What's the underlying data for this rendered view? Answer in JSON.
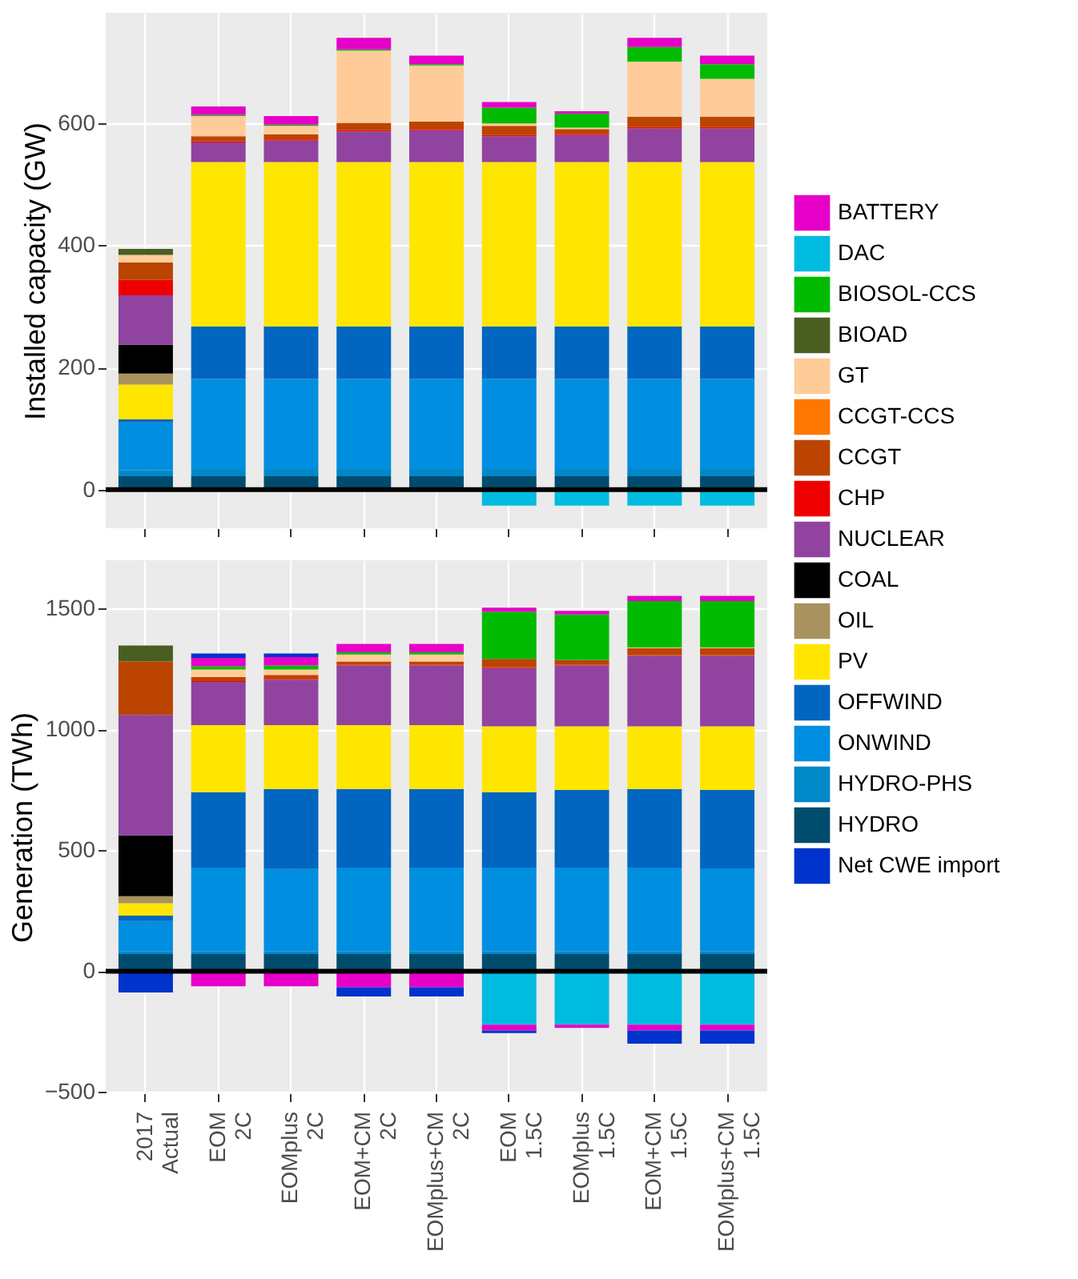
{
  "chart_data": [
    {
      "type": "bar",
      "stacked": true,
      "ylabel": "Installed capacity (GW)",
      "categories": [
        "2017\nActual",
        "EOM\n2C",
        "EOMplus\n2C",
        "EOM+CM\n2C",
        "EOMplus+CM\n2C",
        "EOM\n1.5C",
        "EOMplus\n1.5C",
        "EOM+CM\n1.5C",
        "EOMplus+CM\n1.5C"
      ],
      "ylim": [
        -63,
        780
      ],
      "yticks": [
        0,
        200,
        400,
        600
      ],
      "grid": true,
      "tick_labels": "y",
      "legend": "right",
      "ref_lines": [
        {
          "axis": "y",
          "value": 0,
          "color": "#000000"
        }
      ],
      "series": [
        {
          "name": "HYDRO",
          "color": "#004c6e",
          "values": [
            22,
            22,
            22,
            22,
            22,
            22,
            22,
            22,
            22
          ]
        },
        {
          "name": "HYDRO-PHS",
          "color": "#0088c8",
          "values": [
            10,
            12,
            12,
            12,
            12,
            12,
            12,
            12,
            12
          ]
        },
        {
          "name": "ONWIND",
          "color": "#008ee0",
          "values": [
            78,
            147,
            147,
            147,
            147,
            147,
            147,
            147,
            147
          ]
        },
        {
          "name": "OFFWIND",
          "color": "#0066c0",
          "values": [
            5,
            86,
            86,
            86,
            86,
            86,
            86,
            86,
            86
          ]
        },
        {
          "name": "PV",
          "color": "#ffe600",
          "values": [
            57,
            269,
            269,
            269,
            269,
            269,
            269,
            269,
            269
          ]
        },
        {
          "name": "OIL",
          "color": "#a8925e",
          "values": [
            18,
            null,
            null,
            null,
            null,
            null,
            null,
            null,
            null
          ]
        },
        {
          "name": "COAL",
          "color": "#000000",
          "values": [
            47,
            null,
            null,
            null,
            null,
            null,
            null,
            null,
            null
          ]
        },
        {
          "name": "NUCLEAR",
          "color": "#9044a0",
          "values": [
            81,
            32,
            35,
            50,
            52,
            42,
            44,
            55,
            55
          ]
        },
        {
          "name": "CHP",
          "color": "#ee0000",
          "values": [
            25,
            2,
            2,
            2,
            2,
            2,
            2,
            2,
            2
          ]
        },
        {
          "name": "CCGT",
          "color": "#bb4400",
          "values": [
            29,
            8,
            8,
            12,
            12,
            15,
            8,
            17,
            17
          ]
        },
        {
          "name": "CCGT-CCS",
          "color": "#ff7700",
          "values": [
            null,
            null,
            null,
            null,
            null,
            null,
            null,
            null,
            null
          ]
        },
        {
          "name": "GT",
          "color": "#ffcc99",
          "values": [
            12,
            33,
            14,
            118,
            92,
            4,
            2,
            90,
            62
          ]
        },
        {
          "name": "BIOAD",
          "color": "#4b5e22",
          "values": [
            10,
            null,
            null,
            null,
            null,
            null,
            null,
            null,
            null
          ]
        },
        {
          "name": "BIOSOL-CCS",
          "color": "#00bb00",
          "values": [
            null,
            2,
            2,
            2,
            2,
            26,
            23,
            24,
            24
          ]
        },
        {
          "name": "DAC",
          "color": "#00bbe0",
          "values": [
            null,
            null,
            null,
            null,
            null,
            -26,
            -26,
            -26,
            -26
          ]
        },
        {
          "name": "BATTERY",
          "color": "#e600c8",
          "values": [
            null,
            14,
            14,
            19,
            14,
            9,
            4,
            15,
            14
          ]
        }
      ]
    },
    {
      "type": "bar",
      "stacked": true,
      "ylabel": "Generation (TWh)",
      "categories": [
        "2017\nActual",
        "EOM\n2C",
        "EOMplus\n2C",
        "EOM+CM\n2C",
        "EOMplus+CM\n2C",
        "EOM\n1.5C",
        "EOMplus\n1.5C",
        "EOM+CM\n1.5C",
        "EOMplus+CM\n1.5C"
      ],
      "ylim": [
        -505,
        1700
      ],
      "yticks": [
        -500,
        0,
        500,
        1000,
        1500
      ],
      "grid": true,
      "ref_lines": [
        {
          "axis": "y",
          "value": 0,
          "color": "#000000"
        }
      ],
      "series": [
        {
          "name": "HYDRO",
          "color": "#004c6e",
          "values": [
            71,
            71,
            71,
            71,
            71,
            71,
            71,
            71,
            71
          ]
        },
        {
          "name": "HYDRO-PHS",
          "color": "#0088c8",
          "values": [
            11,
            11,
            11,
            11,
            11,
            11,
            11,
            11,
            11
          ]
        },
        {
          "name": "ONWIND",
          "color": "#008ee0",
          "values": [
            126,
            347,
            341,
            347,
            347,
            347,
            347,
            347,
            343
          ]
        },
        {
          "name": "OFFWIND",
          "color": "#0066c0",
          "values": [
            22,
            312,
            331,
            325,
            325,
            312,
            321,
            325,
            325
          ]
        },
        {
          "name": "PV",
          "color": "#ffe600",
          "values": [
            51,
            277,
            264,
            264,
            264,
            272,
            263,
            259,
            263
          ]
        },
        {
          "name": "OIL",
          "color": "#a8925e",
          "values": [
            29,
            null,
            null,
            null,
            null,
            null,
            null,
            null,
            null
          ]
        },
        {
          "name": "COAL",
          "color": "#000000",
          "values": [
            252,
            null,
            null,
            null,
            null,
            null,
            null,
            null,
            null
          ]
        },
        {
          "name": "NUCLEAR",
          "color": "#9044a0",
          "values": [
            498,
            179,
            188,
            247,
            247,
            241,
            252,
            292,
            292
          ]
        },
        {
          "name": "CHP",
          "color": "#ee0000",
          "values": [
            null,
            3,
            3,
            3,
            3,
            3,
            3,
            3,
            3
          ]
        },
        {
          "name": "CCGT",
          "color": "#bb4400",
          "values": [
            221,
            17,
            17,
            13,
            13,
            35,
            20,
            28,
            28
          ]
        },
        {
          "name": "GT",
          "color": "#ffcc99",
          "values": [
            null,
            31,
            22,
            29,
            29,
            null,
            null,
            3,
            3
          ]
        },
        {
          "name": "BIOAD",
          "color": "#4b5e22",
          "values": [
            66,
            null,
            null,
            null,
            null,
            null,
            null,
            null,
            null
          ]
        },
        {
          "name": "BIOSOL-CCS",
          "color": "#00bb00",
          "values": [
            null,
            13,
            17,
            9,
            9,
            195,
            188,
            192,
            192
          ]
        },
        {
          "name": "DAC",
          "color": "#00bbe0",
          "values": [
            null,
            null,
            null,
            null,
            null,
            -221,
            -221,
            -221,
            -221
          ]
        },
        {
          "name": "BATTERY",
          "color": "#e600c8",
          "values": [
            null,
            35,
            34,
            35,
            35,
            17,
            15,
            22,
            22
          ]
        },
        {
          "name": "BATTERY",
          "color": "#e600c8",
          "values": [
            null,
            -62,
            -62,
            -66,
            -66,
            -24,
            -13,
            -24,
            -24
          ]
        },
        {
          "name": "Net CWE import",
          "color": "#0033cc",
          "values": [
            -88,
            18,
            15,
            -38,
            -38,
            -11,
            null,
            -55,
            -55
          ]
        }
      ]
    }
  ]
}
